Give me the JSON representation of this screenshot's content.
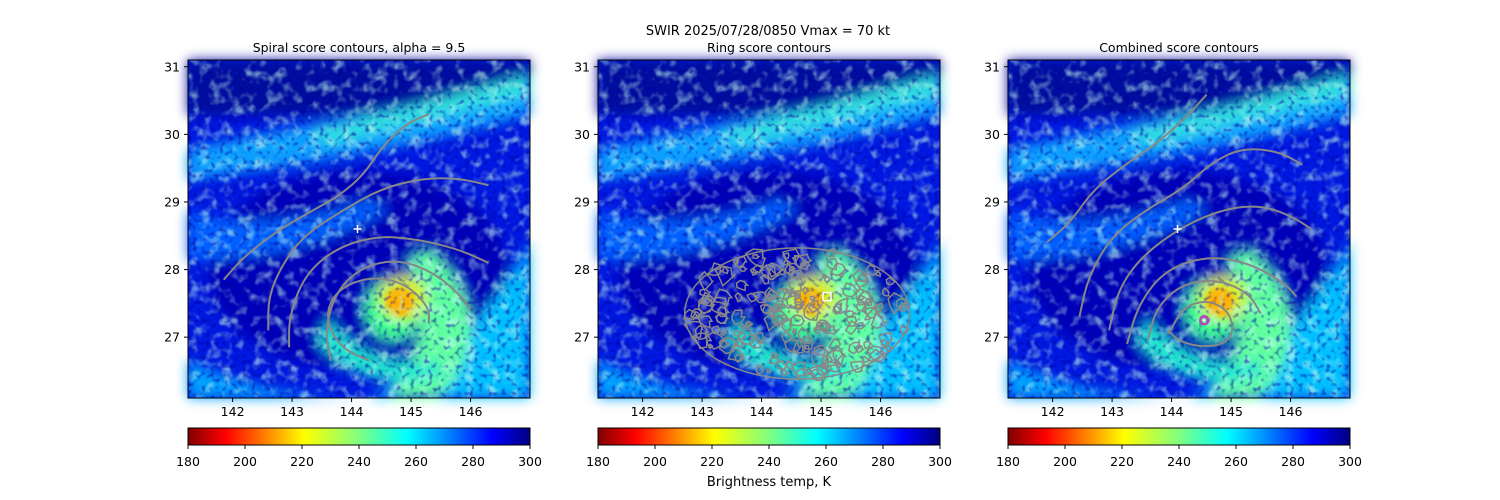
{
  "figure": {
    "suptitle_line1": "SWIR  2025/07/28/0850    Vmax = 70 kt",
    "colorbar_label": "Brightness temp, K"
  },
  "chart_data": [
    {
      "type": "heatmap",
      "title": "Spiral score contours, alpha =  9.5",
      "xlim": [
        141.25,
        147.0
      ],
      "ylim": [
        26.1,
        31.1
      ],
      "xticks": [
        142,
        143,
        144,
        145,
        146
      ],
      "yticks": [
        27,
        28,
        29,
        30,
        31
      ],
      "grid": false,
      "colormap": "jet_r",
      "clim": [
        180,
        300
      ],
      "colorbar_ticks": [
        180,
        200,
        220,
        240,
        260,
        280,
        300
      ],
      "marker_plus": [
        144.1,
        28.6
      ],
      "contour_color": "#888888",
      "contours": [
        [
          [
            141.85,
            27.85
          ],
          [
            142.2,
            28.2
          ],
          [
            142.8,
            28.6
          ],
          [
            143.4,
            28.9
          ],
          [
            143.8,
            29.1
          ],
          [
            144.2,
            29.4
          ],
          [
            144.5,
            29.8
          ],
          [
            144.9,
            30.15
          ],
          [
            145.3,
            30.3
          ]
        ],
        [
          [
            142.6,
            27.1
          ],
          [
            142.6,
            27.6
          ],
          [
            142.85,
            28.1
          ],
          [
            143.2,
            28.5
          ],
          [
            143.8,
            28.85
          ],
          [
            144.5,
            29.2
          ],
          [
            145.2,
            29.35
          ],
          [
            145.8,
            29.35
          ],
          [
            146.3,
            29.25
          ]
        ],
        [
          [
            142.95,
            26.85
          ],
          [
            142.95,
            27.3
          ],
          [
            143.2,
            27.9
          ],
          [
            143.7,
            28.3
          ],
          [
            144.4,
            28.5
          ],
          [
            145.1,
            28.45
          ],
          [
            145.8,
            28.3
          ],
          [
            146.3,
            28.1
          ]
        ],
        [
          [
            143.65,
            26.65
          ],
          [
            143.55,
            27.1
          ],
          [
            143.75,
            27.7
          ],
          [
            144.2,
            28.05
          ],
          [
            144.8,
            28.15
          ],
          [
            145.4,
            27.95
          ],
          [
            145.85,
            27.6
          ],
          [
            146.0,
            27.4
          ]
        ],
        [
          [
            144.3,
            26.65
          ],
          [
            143.8,
            26.85
          ],
          [
            143.55,
            27.3
          ],
          [
            143.75,
            27.7
          ],
          [
            144.3,
            27.9
          ],
          [
            144.9,
            27.8
          ],
          [
            145.3,
            27.45
          ],
          [
            145.3,
            27.2
          ]
        ]
      ]
    },
    {
      "type": "heatmap",
      "title": "Ring score contours",
      "xlim": [
        141.25,
        147.0
      ],
      "ylim": [
        26.1,
        31.1
      ],
      "xticks": [
        142,
        143,
        144,
        145,
        146
      ],
      "yticks": [
        27,
        28,
        29,
        30,
        31
      ],
      "grid": false,
      "colormap": "jet_r",
      "clim": [
        180,
        300
      ],
      "colorbar_ticks": [
        180,
        200,
        220,
        240,
        260,
        280,
        300
      ],
      "marker_square": [
        145.1,
        27.6
      ],
      "contour_color": "#888888",
      "ring_region_center": [
        144.6,
        27.35
      ],
      "ring_region_radius": [
        1.95,
        1.0
      ]
    },
    {
      "type": "heatmap",
      "title": "Combined score contours",
      "xlim": [
        141.25,
        147.0
      ],
      "ylim": [
        26.1,
        31.1
      ],
      "xticks": [
        142,
        143,
        144,
        145,
        146
      ],
      "yticks": [
        27,
        28,
        29,
        30,
        31
      ],
      "grid": false,
      "colormap": "jet_r",
      "clim": [
        180,
        300
      ],
      "colorbar_ticks": [
        180,
        200,
        220,
        240,
        260,
        280,
        300
      ],
      "marker_plus": [
        144.1,
        28.6
      ],
      "marker_circle": [
        144.55,
        27.25
      ],
      "contour_color": "#888888",
      "contours": [
        [
          [
            141.9,
            28.4
          ],
          [
            142.3,
            28.7
          ],
          [
            142.7,
            29.2
          ],
          [
            143.3,
            29.6
          ],
          [
            143.8,
            29.9
          ],
          [
            144.3,
            30.3
          ],
          [
            144.6,
            30.6
          ],
          [
            144.55,
            30.55
          ]
        ],
        [
          [
            142.45,
            27.3
          ],
          [
            142.6,
            27.9
          ],
          [
            143.0,
            28.5
          ],
          [
            143.6,
            28.9
          ],
          [
            144.2,
            29.2
          ],
          [
            144.7,
            29.6
          ],
          [
            145.2,
            29.8
          ],
          [
            145.8,
            29.75
          ],
          [
            146.2,
            29.55
          ]
        ],
        [
          [
            142.95,
            27.1
          ],
          [
            143.1,
            27.7
          ],
          [
            143.5,
            28.2
          ],
          [
            144.2,
            28.65
          ],
          [
            144.9,
            28.9
          ],
          [
            145.5,
            28.95
          ],
          [
            146.0,
            28.8
          ],
          [
            146.35,
            28.6
          ]
        ],
        [
          [
            143.25,
            26.9
          ],
          [
            143.45,
            27.5
          ],
          [
            143.9,
            28.0
          ],
          [
            144.6,
            28.2
          ],
          [
            145.3,
            28.1
          ],
          [
            145.9,
            27.8
          ],
          [
            146.1,
            27.6
          ]
        ],
        [
          [
            143.6,
            26.95
          ],
          [
            143.75,
            27.45
          ],
          [
            144.2,
            27.8
          ],
          [
            144.8,
            27.85
          ],
          [
            145.3,
            27.65
          ],
          [
            145.5,
            27.35
          ]
        ],
        [
          [
            143.95,
            27.05
          ],
          [
            144.2,
            27.45
          ],
          [
            144.6,
            27.55
          ],
          [
            144.95,
            27.4
          ],
          [
            145.05,
            27.1
          ],
          [
            144.9,
            26.9
          ],
          [
            144.5,
            26.85
          ],
          [
            144.1,
            26.95
          ],
          [
            143.95,
            27.1
          ]
        ]
      ]
    }
  ]
}
